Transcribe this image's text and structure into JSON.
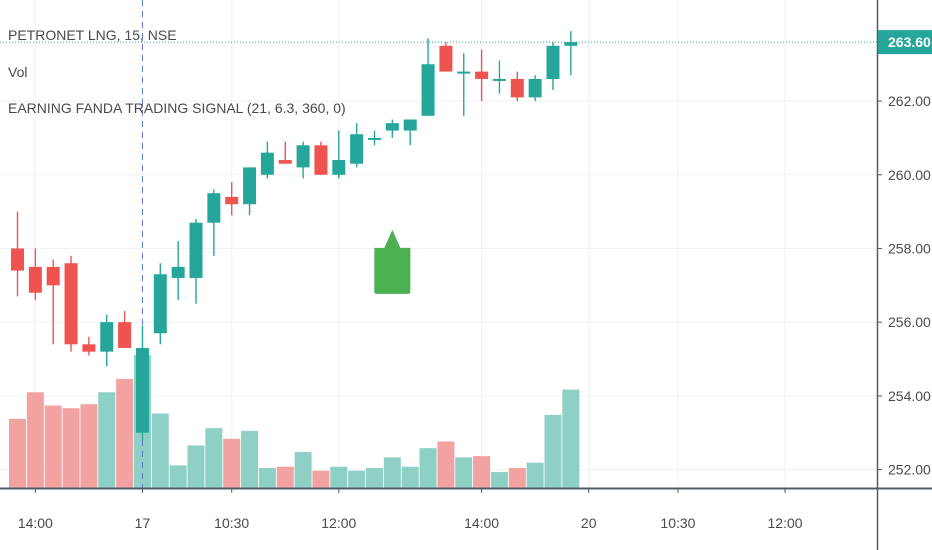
{
  "symbol_title": "PETRONET LNG, 15, NSE",
  "legends": {
    "volume": "Vol",
    "indicator": "EARNING FANDA TRADING SIGNAL (21, 6.3, 360, 0)"
  },
  "colors": {
    "up": "#26a69a",
    "down": "#ef5350",
    "up_volume": "#8fd0c6",
    "down_volume": "#f2a3a1",
    "signal": "#4caf50",
    "grid": "#eef1f5",
    "last_price_line": "#26a69a"
  },
  "chart_data": {
    "type": "candlestick",
    "y_axis": {
      "min": 251.5,
      "max": 264.2,
      "ticks": [
        {
          "value": 262,
          "label": "262.00"
        },
        {
          "value": 260,
          "label": "260.00"
        },
        {
          "value": 258,
          "label": "258.00"
        },
        {
          "value": 256,
          "label": "256.00"
        },
        {
          "value": 254,
          "label": "254.00"
        },
        {
          "value": 252,
          "label": "252.00"
        }
      ]
    },
    "x_axis": {
      "ticks": [
        {
          "label": "14:00",
          "bar": 1
        },
        {
          "label": "17",
          "bar": 7
        },
        {
          "label": "10:30",
          "bar": 12
        },
        {
          "label": "12:00",
          "bar": 18
        },
        {
          "label": "14:00",
          "bar": 26
        },
        {
          "label": "20",
          "bar": 32
        },
        {
          "label": "10:30",
          "bar": 37
        },
        {
          "label": "12:00",
          "bar": 43
        }
      ]
    },
    "day_separator_bar": 7,
    "last_price": {
      "value": 263.6,
      "label": "263.60"
    },
    "candles": [
      {
        "o": 258.0,
        "h": 259.0,
        "l": 256.7,
        "c": 257.4
      },
      {
        "o": 257.5,
        "h": 258.0,
        "l": 256.6,
        "c": 256.8
      },
      {
        "o": 257.5,
        "h": 257.7,
        "l": 255.4,
        "c": 257.0
      },
      {
        "o": 257.6,
        "h": 257.8,
        "l": 255.2,
        "c": 255.4
      },
      {
        "o": 255.4,
        "h": 255.6,
        "l": 255.1,
        "c": 255.2
      },
      {
        "o": 255.2,
        "h": 256.2,
        "l": 254.8,
        "c": 256.0
      },
      {
        "o": 256.0,
        "h": 256.3,
        "l": 255.3,
        "c": 255.3
      },
      {
        "o": 253.0,
        "h": 255.9,
        "l": 252.8,
        "c": 255.3
      },
      {
        "o": 255.7,
        "h": 257.6,
        "l": 255.4,
        "c": 257.3
      },
      {
        "o": 257.2,
        "h": 258.2,
        "l": 256.6,
        "c": 257.5
      },
      {
        "o": 257.2,
        "h": 258.8,
        "l": 256.5,
        "c": 258.7
      },
      {
        "o": 258.7,
        "h": 259.6,
        "l": 257.8,
        "c": 259.5
      },
      {
        "o": 259.4,
        "h": 259.8,
        "l": 258.9,
        "c": 259.2
      },
      {
        "o": 259.2,
        "h": 260.2,
        "l": 258.9,
        "c": 260.2
      },
      {
        "o": 260.0,
        "h": 260.9,
        "l": 259.9,
        "c": 260.6
      },
      {
        "o": 260.4,
        "h": 260.9,
        "l": 260.3,
        "c": 260.3
      },
      {
        "o": 260.2,
        "h": 260.9,
        "l": 259.9,
        "c": 260.8
      },
      {
        "o": 260.8,
        "h": 260.9,
        "l": 260.0,
        "c": 260.0
      },
      {
        "o": 260.0,
        "h": 261.2,
        "l": 259.9,
        "c": 260.4
      },
      {
        "o": 260.3,
        "h": 261.4,
        "l": 260.2,
        "c": 261.1
      },
      {
        "o": 261.0,
        "h": 261.2,
        "l": 260.8,
        "c": 261.0
      },
      {
        "o": 261.2,
        "h": 261.5,
        "l": 261.0,
        "c": 261.4
      },
      {
        "o": 261.2,
        "h": 261.5,
        "l": 260.8,
        "c": 261.5
      },
      {
        "o": 261.6,
        "h": 263.7,
        "l": 261.6,
        "c": 263.0
      },
      {
        "o": 263.5,
        "h": 263.6,
        "l": 262.8,
        "c": 262.8
      },
      {
        "o": 262.8,
        "h": 263.3,
        "l": 261.6,
        "c": 262.8
      },
      {
        "o": 262.8,
        "h": 263.4,
        "l": 262.0,
        "c": 262.6
      },
      {
        "o": 262.6,
        "h": 263.1,
        "l": 262.2,
        "c": 262.6
      },
      {
        "o": 262.6,
        "h": 262.8,
        "l": 262.0,
        "c": 262.1
      },
      {
        "o": 262.1,
        "h": 262.7,
        "l": 262.0,
        "c": 262.6
      },
      {
        "o": 262.6,
        "h": 263.6,
        "l": 262.3,
        "c": 263.5
      },
      {
        "o": 263.5,
        "h": 263.9,
        "l": 262.7,
        "c": 263.6
      }
    ],
    "volume": [
      0.52,
      0.72,
      0.62,
      0.6,
      0.63,
      0.72,
      0.82,
      1.0,
      0.56,
      0.17,
      0.32,
      0.45,
      0.37,
      0.43,
      0.15,
      0.16,
      0.27,
      0.13,
      0.16,
      0.13,
      0.15,
      0.23,
      0.16,
      0.3,
      0.35,
      0.23,
      0.24,
      0.12,
      0.15,
      0.19,
      0.55,
      0.74
    ],
    "signals": [
      {
        "type": "buy",
        "bar": 21,
        "price": 257.8
      }
    ]
  }
}
